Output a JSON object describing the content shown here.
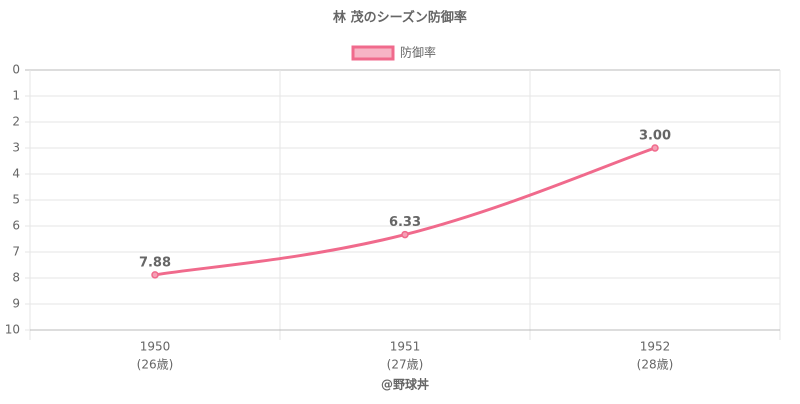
{
  "chart_data": {
    "type": "line",
    "title": "林 茂のシーズン防御率",
    "categories": [
      "1950",
      "1951",
      "1952"
    ],
    "sublabels": [
      "(26歳)",
      "(27歳)",
      "(28歳)"
    ],
    "series": [
      {
        "name": "防御率",
        "color": "#f06a8c",
        "values": [
          7.88,
          6.33,
          3
        ],
        "value_labels": [
          "7.88",
          "6.33",
          "3.00"
        ]
      }
    ],
    "ylim": [
      0,
      10
    ],
    "yticks": [
      0,
      1,
      2,
      3,
      4,
      5,
      6,
      7,
      8,
      9,
      10
    ],
    "reversed": true,
    "grid": true,
    "legend": "top",
    "credit": "@野球丼"
  }
}
